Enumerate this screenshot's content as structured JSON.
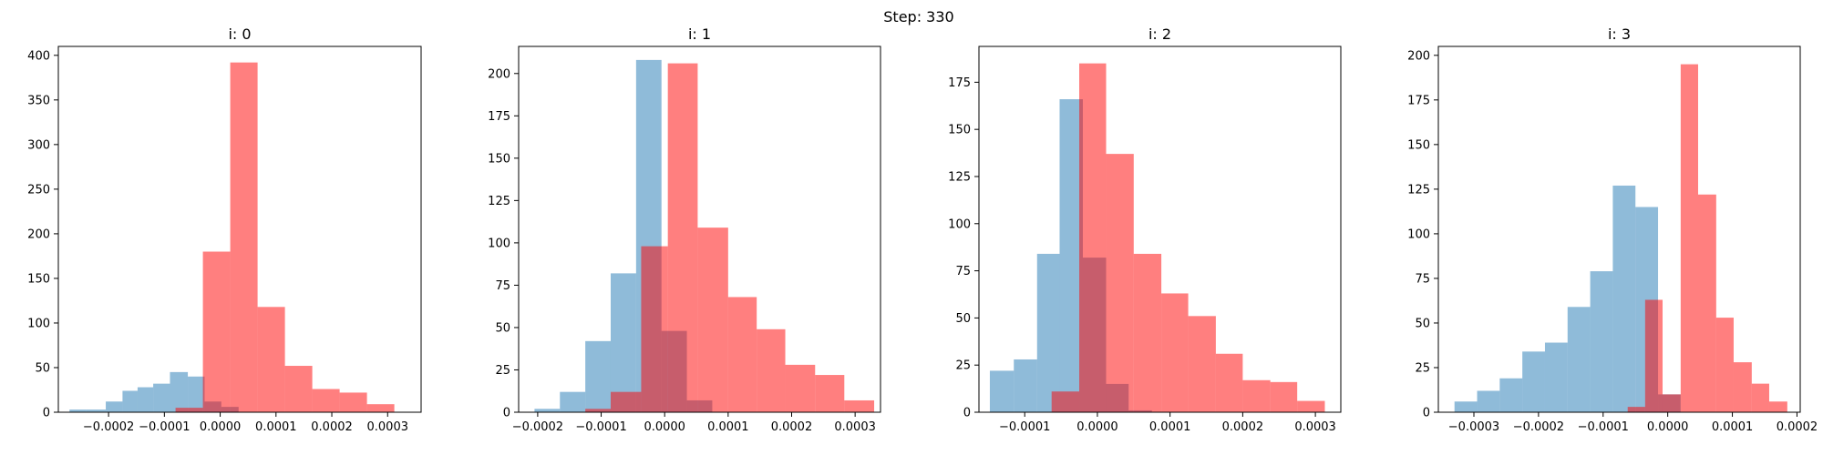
{
  "figure": {
    "suptitle": "Step: 330"
  },
  "colors": {
    "series_a": "#1f77b4",
    "series_a_alpha": 0.5,
    "series_b": "#ff0000",
    "series_b_alpha": 0.5
  },
  "chart_data": [
    {
      "type": "bar",
      "title": "i: 0",
      "xlim": [
        -0.00029,
        0.00036
      ],
      "ylim": [
        0,
        410
      ],
      "xticks": [
        -0.0002,
        -0.0001,
        0.0,
        0.0001,
        0.0002,
        0.0003
      ],
      "xtick_labels": [
        "−0.0002",
        "−0.0001",
        "0.0000",
        "0.0001",
        "0.0002",
        "0.0003"
      ],
      "yticks": [
        0,
        50,
        100,
        150,
        200,
        250,
        300,
        350,
        400
      ],
      "grid": false,
      "series": [
        {
          "bins": [
            [
              -0.00027,
              -0.00024
            ],
            [
              -0.00024,
              -0.000205
            ],
            [
              -0.000205,
              -0.000175
            ],
            [
              -0.000175,
              -0.000148
            ],
            [
              -0.000148,
              -0.00012
            ],
            [
              -0.00012,
              -9e-05
            ],
            [
              -9e-05,
              -5.8e-05
            ],
            [
              -5.8e-05,
              -2.8e-05
            ],
            [
              -2.8e-05,
              2e-06
            ],
            [
              2e-06,
              3.3e-05
            ]
          ],
          "counts": [
            3,
            3,
            12,
            24,
            28,
            32,
            45,
            40,
            12,
            6
          ]
        },
        {
          "bins": [
            [
              -8e-05,
              -3.1e-05
            ],
            [
              -3.1e-05,
              1.8e-05
            ],
            [
              1.8e-05,
              6.7e-05
            ],
            [
              6.7e-05,
              0.000116
            ],
            [
              0.000116,
              0.000165
            ],
            [
              0.000165,
              0.000214
            ],
            [
              0.000214,
              0.000263
            ],
            [
              0.000263,
              0.000312
            ],
            [
              0.000312,
              0.00036
            ]
          ],
          "counts": [
            5,
            180,
            392,
            118,
            52,
            26,
            22,
            9,
            0
          ]
        }
      ]
    },
    {
      "type": "bar",
      "title": "i: 1",
      "xlim": [
        -0.00023,
        0.00034
      ],
      "ylim": [
        0,
        216
      ],
      "xticks": [
        -0.0002,
        -0.0001,
        0.0,
        0.0001,
        0.0002,
        0.0003
      ],
      "xtick_labels": [
        "−0.0002",
        "−0.0001",
        "0.0000",
        "0.0001",
        "0.0002",
        "0.0003"
      ],
      "yticks": [
        0,
        25,
        50,
        75,
        100,
        125,
        150,
        175,
        200
      ],
      "grid": false,
      "series": [
        {
          "bins": [
            [
              -0.000205,
              -0.000165
            ],
            [
              -0.000165,
              -0.000125
            ],
            [
              -0.000125,
              -8.5e-05
            ],
            [
              -8.5e-05,
              -4.5e-05
            ],
            [
              -4.5e-05,
              -5e-06
            ],
            [
              -5e-06,
              3.5e-05
            ],
            [
              3.5e-05,
              7.5e-05
            ]
          ],
          "counts": [
            2,
            12,
            42,
            82,
            208,
            48,
            7
          ]
        },
        {
          "bins": [
            [
              -0.000125,
              -8.5e-05
            ],
            [
              -8.5e-05,
              -3.7e-05
            ],
            [
              -3.7e-05,
              5e-06
            ],
            [
              5e-06,
              5.2e-05
            ],
            [
              5.2e-05,
              0.0001
            ],
            [
              0.0001,
              0.000145
            ],
            [
              0.000145,
              0.00019
            ],
            [
              0.00019,
              0.000237
            ],
            [
              0.000237,
              0.000283
            ],
            [
              0.000283,
              0.00033
            ]
          ],
          "counts": [
            2,
            12,
            98,
            206,
            109,
            68,
            49,
            28,
            22,
            7
          ]
        }
      ]
    },
    {
      "type": "bar",
      "title": "i: 2",
      "xlim": [
        -0.000163,
        0.000335
      ],
      "ylim": [
        0,
        194
      ],
      "xticks": [
        -0.0001,
        0.0,
        0.0001,
        0.0002,
        0.0003
      ],
      "xtick_labels": [
        "−0.0001",
        "0.0000",
        "0.0001",
        "0.0002",
        "0.0003"
      ],
      "yticks": [
        0,
        25,
        50,
        75,
        100,
        125,
        150,
        175
      ],
      "grid": false,
      "series": [
        {
          "bins": [
            [
              -0.000148,
              -0.000115
            ],
            [
              -0.000115,
              -8.3e-05
            ],
            [
              -8.3e-05,
              -5.2e-05
            ],
            [
              -5.2e-05,
              -2e-05
            ],
            [
              -2e-05,
              1.2e-05
            ],
            [
              1.2e-05,
              4.3e-05
            ],
            [
              4.3e-05,
              7.5e-05
            ]
          ],
          "counts": [
            22,
            28,
            84,
            166,
            82,
            15,
            1
          ]
        },
        {
          "bins": [
            [
              -6.3e-05,
              -2.5e-05
            ],
            [
              -2.5e-05,
              1.2e-05
            ],
            [
              1.2e-05,
              5e-05
            ],
            [
              5e-05,
              8.8e-05
            ],
            [
              8.8e-05,
              0.000125
            ],
            [
              0.000125,
              0.000163
            ],
            [
              0.000163,
              0.0002
            ],
            [
              0.0002,
              0.000238
            ],
            [
              0.000238,
              0.000275
            ],
            [
              0.000275,
              0.000313
            ]
          ],
          "counts": [
            11,
            185,
            137,
            84,
            63,
            51,
            31,
            17,
            16,
            6
          ]
        }
      ]
    },
    {
      "type": "bar",
      "title": "i: 3",
      "xlim": [
        -0.000355,
        0.000205
      ],
      "ylim": [
        0,
        205
      ],
      "xticks": [
        -0.0003,
        -0.0002,
        -0.0001,
        0.0,
        0.0001,
        0.0002
      ],
      "xtick_labels": [
        "−0.0003",
        "−0.0002",
        "−0.0001",
        "0.0000",
        "0.0001",
        "0.0002"
      ],
      "yticks": [
        0,
        25,
        50,
        75,
        100,
        125,
        150,
        175,
        200
      ],
      "grid": false,
      "series": [
        {
          "bins": [
            [
              -0.00033,
              -0.000295
            ],
            [
              -0.000295,
              -0.00026
            ],
            [
              -0.00026,
              -0.000225
            ],
            [
              -0.000225,
              -0.00019
            ],
            [
              -0.00019,
              -0.000155
            ],
            [
              -0.000155,
              -0.00012
            ],
            [
              -0.00012,
              -8.5e-05
            ],
            [
              -8.5e-05,
              -5e-05
            ],
            [
              -5e-05,
              -1.5e-05
            ],
            [
              -1.5e-05,
              2e-05
            ]
          ],
          "counts": [
            6,
            12,
            19,
            34,
            39,
            59,
            79,
            127,
            115,
            10
          ]
        },
        {
          "bins": [
            [
              -9e-05,
              -6.2e-05
            ],
            [
              -6.2e-05,
              -3.5e-05
            ],
            [
              -3.5e-05,
              -8e-06
            ],
            [
              -8e-06,
              2e-05
            ],
            [
              2e-05,
              4.7e-05
            ],
            [
              4.7e-05,
              7.5e-05
            ],
            [
              7.5e-05,
              0.000102
            ],
            [
              0.000102,
              0.00013
            ],
            [
              0.00013,
              0.000157
            ],
            [
              0.000157,
              0.000185
            ]
          ],
          "counts": [
            0,
            3,
            63,
            10,
            195,
            122,
            53,
            28,
            16,
            6
          ]
        }
      ]
    }
  ]
}
